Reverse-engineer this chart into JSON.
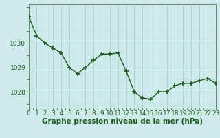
{
  "x": [
    0,
    1,
    2,
    3,
    4,
    5,
    6,
    7,
    8,
    9,
    10,
    11,
    12,
    13,
    14,
    15,
    16,
    17,
    18,
    19,
    20,
    21,
    22,
    23
  ],
  "y": [
    1031.1,
    1030.3,
    1030.0,
    1029.8,
    1029.6,
    1029.0,
    1028.75,
    1029.0,
    1029.3,
    1029.55,
    1029.55,
    1029.6,
    1028.85,
    1028.0,
    1027.75,
    1027.7,
    1028.0,
    1028.0,
    1028.25,
    1028.35,
    1028.35,
    1028.45,
    1028.55,
    1028.35
  ],
  "line_color": "#1a5c1a",
  "marker_color": "#1a5c1a",
  "bg_color": "#ceeaea",
  "grid_color_major": "#aacaca",
  "grid_color_minor": "#c0dcdc",
  "axis_color": "#6a8a6a",
  "xlabel": "Graphe pression niveau de la mer (hPa)",
  "xlabel_color": "#1a5c1a",
  "yticks": [
    1028,
    1029,
    1030
  ],
  "ylim": [
    1027.35,
    1031.6
  ],
  "xlim": [
    0,
    23
  ],
  "xtick_labels": [
    "0",
    "1",
    "2",
    "3",
    "4",
    "5",
    "6",
    "7",
    "8",
    "9",
    "10",
    "11",
    "12",
    "13",
    "14",
    "15",
    "16",
    "17",
    "18",
    "19",
    "20",
    "21",
    "22",
    "23"
  ],
  "fontsize_xlabel": 7.5,
  "fontsize_ticks": 6.5,
  "marker_size": 4,
  "line_width": 1.0
}
